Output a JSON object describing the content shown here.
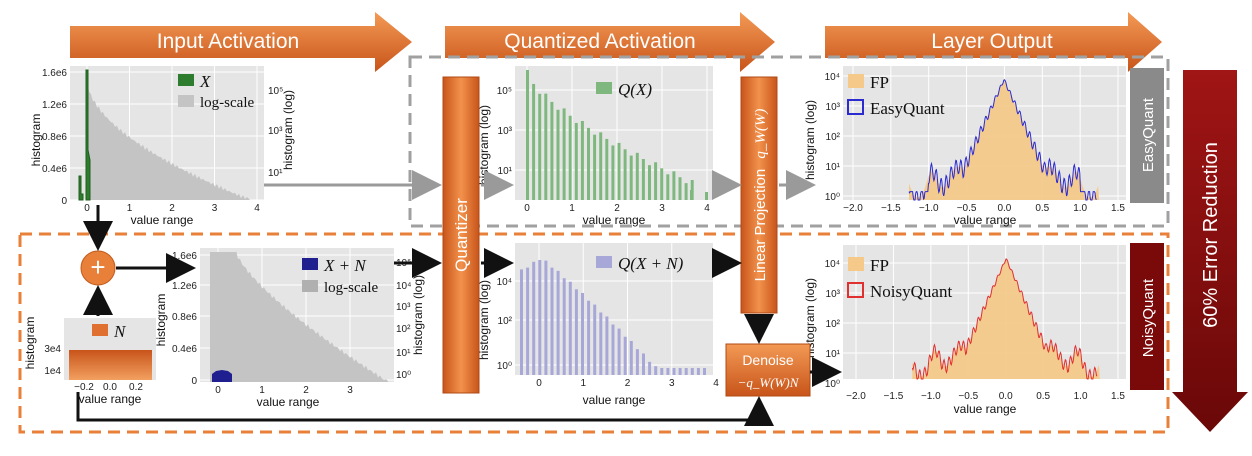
{
  "banner": {
    "input_activation": "Input Activation",
    "quantized_activation": "Quantized Activation",
    "layer_output": "Layer Output"
  },
  "colors": {
    "orange_dark": "#c4541a",
    "orange_light": "#f0924a",
    "maroon": "#7a0a0a",
    "gray_box": "#8a8a8a",
    "green": "#2e7d2e",
    "light_green": "#7fb87f",
    "navy": "#1f1f8f",
    "lavender": "#a8a8d8",
    "fp_fill": "#f4c98a",
    "blue_line": "#2b2bd0",
    "red_line": "#e03030",
    "plot_bg": "#e5e5e5",
    "dash_gray": "#a0a0a0",
    "dash_orange": "#e8803a"
  },
  "plot1": {
    "legend_x": "X",
    "legend_log": "log-scale",
    "y_ticks": [
      "1.6e6",
      "1.2e6",
      "0.8e6",
      "0.4e6",
      "0"
    ],
    "x_ticks": [
      "0",
      "1",
      "2",
      "3",
      "4"
    ],
    "y2_ticks": [
      "10⁵",
      "10³",
      "10¹"
    ],
    "ylabel": "histogram",
    "y2label": "histogram (log)",
    "xlabel": "value range"
  },
  "plot2": {
    "legend": "Q(X)",
    "y_ticks": [
      "10⁵",
      "10³",
      "10¹"
    ],
    "x_ticks": [
      "0",
      "1",
      "2",
      "3",
      "4"
    ],
    "ylabel": "histogram (log)",
    "xlabel": "value range"
  },
  "plot3": {
    "legend_fp": "FP",
    "legend_eq": "EasyQuant",
    "y_ticks": [
      "10⁴",
      "10³",
      "10²",
      "10¹",
      "10⁰"
    ],
    "x_ticks": [
      "−2.0",
      "−1.5",
      "−1.0",
      "−0.5",
      "0.0",
      "0.5",
      "1.0",
      "1.5"
    ],
    "ylabel": "histogram (log)",
    "xlabel": "value range",
    "side_label": "EasyQuant"
  },
  "plot4": {
    "legend_n": "N",
    "y_ticks": [
      "3e4",
      "1e4"
    ],
    "x_ticks": [
      "−0.2",
      "0.0",
      "0.2"
    ],
    "ylabel": "histogram",
    "xlabel": "value range"
  },
  "plot5": {
    "legend_xn": "X + N",
    "legend_log": "log-scale",
    "y_ticks": [
      "1.6e6",
      "1.2e6",
      "0.8e6",
      "0.4e6",
      "0"
    ],
    "x_ticks": [
      "0",
      "1",
      "2",
      "3"
    ],
    "y2_ticks": [
      "10⁵",
      "10⁴",
      "10³",
      "10²",
      "10¹",
      "10⁰"
    ],
    "ylabel": "histogram",
    "y2label": "histogram (log)",
    "xlabel": "value range"
  },
  "plot6": {
    "legend": "Q(X + N)",
    "y_ticks": [
      "10⁴",
      "10²",
      "10⁰"
    ],
    "x_ticks": [
      "0",
      "1",
      "2",
      "3",
      "4"
    ],
    "ylabel": "histogram (log)",
    "xlabel": "value range"
  },
  "plot7": {
    "legend_fp": "FP",
    "legend_nq": "NoisyQuant",
    "y_ticks": [
      "10⁴",
      "10³",
      "10²",
      "10¹",
      "10⁰"
    ],
    "x_ticks": [
      "−2.0",
      "−1.5",
      "−1.0",
      "−0.5",
      "0.0",
      "0.5",
      "1.0",
      "1.5"
    ],
    "ylabel": "histogram (log)",
    "xlabel": "value range",
    "side_label": "NoisyQuant"
  },
  "blocks": {
    "quantizer": "Quantizer",
    "linear_projection": "Linear Projection",
    "linear_projection_math": "q_W(W)",
    "denoise": "Denoise",
    "denoise_math": "−q_W(W)N",
    "plus": "+"
  },
  "error_reduction": "60% Error Reduction"
}
